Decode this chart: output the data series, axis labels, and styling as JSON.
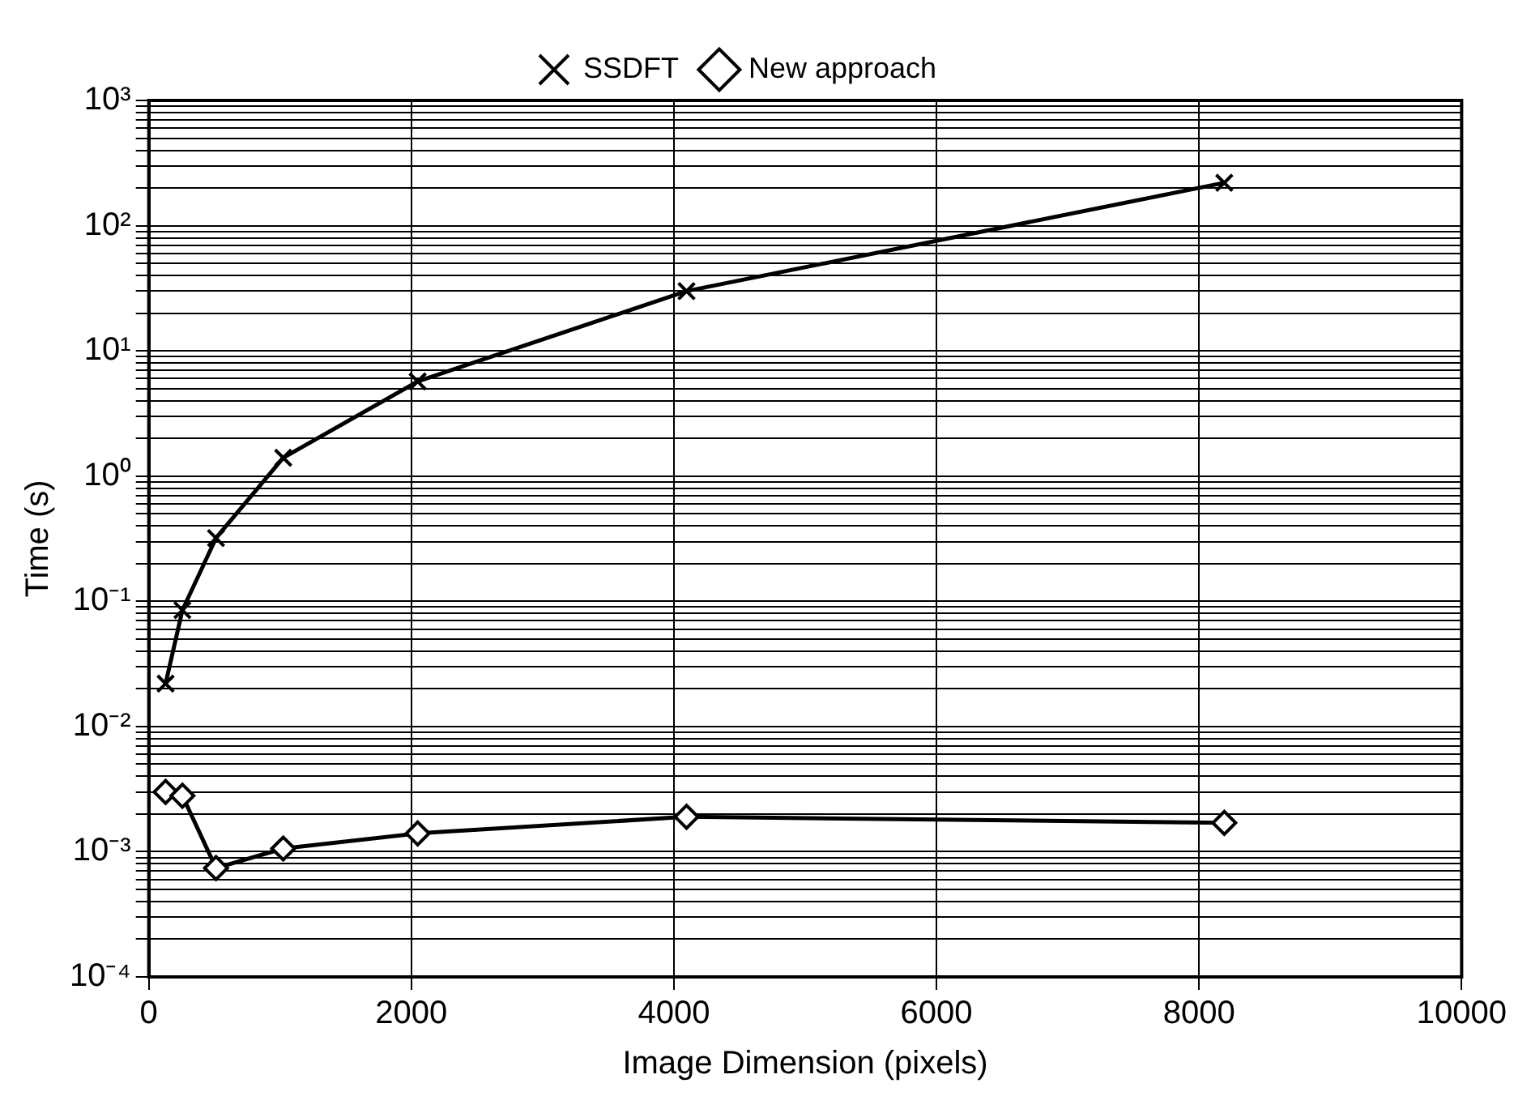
{
  "chart_data": {
    "type": "line",
    "xlabel": "Image Dimension (pixels)",
    "ylabel": "Time (s)",
    "log": "y",
    "grid": true,
    "legend": "top",
    "line_style": "solid",
    "x": [
      128,
      256,
      512,
      1024,
      2048,
      4096,
      8192
    ],
    "xlim": [
      0,
      10000
    ],
    "xticks": [
      0,
      2000,
      4000,
      6000,
      8000,
      10000
    ],
    "ylim": [
      0.0001,
      1000
    ],
    "yticks": [
      {
        "value": 0.0001,
        "label": "10⁻⁴"
      },
      {
        "value": 0.0002,
        "label": null
      },
      {
        "value": 0.0003,
        "label": null
      },
      {
        "value": 0.0004,
        "label": null
      },
      {
        "value": 0.0005,
        "label": null
      },
      {
        "value": 0.0006,
        "label": null
      },
      {
        "value": 0.0007,
        "label": null
      },
      {
        "value": 0.0008,
        "label": null
      },
      {
        "value": 0.0009,
        "label": null
      },
      {
        "value": 0.001,
        "label": "10⁻³"
      },
      {
        "value": 0.002,
        "label": null
      },
      {
        "value": 0.003,
        "label": null
      },
      {
        "value": 0.004,
        "label": null
      },
      {
        "value": 0.005,
        "label": null
      },
      {
        "value": 0.006,
        "label": null
      },
      {
        "value": 0.007,
        "label": null
      },
      {
        "value": 0.008,
        "label": null
      },
      {
        "value": 0.009,
        "label": null
      },
      {
        "value": 0.01,
        "label": "10⁻²"
      },
      {
        "value": 0.02,
        "label": null
      },
      {
        "value": 0.03,
        "label": null
      },
      {
        "value": 0.04,
        "label": null
      },
      {
        "value": 0.05,
        "label": null
      },
      {
        "value": 0.06,
        "label": null
      },
      {
        "value": 0.07,
        "label": null
      },
      {
        "value": 0.08,
        "label": null
      },
      {
        "value": 0.09,
        "label": null
      },
      {
        "value": 0.1,
        "label": "10⁻¹"
      },
      {
        "value": 0.2,
        "label": null
      },
      {
        "value": 0.3,
        "label": null
      },
      {
        "value": 0.4,
        "label": null
      },
      {
        "value": 0.5,
        "label": null
      },
      {
        "value": 0.6,
        "label": null
      },
      {
        "value": 0.7,
        "label": null
      },
      {
        "value": 0.8,
        "label": null
      },
      {
        "value": 0.9,
        "label": null
      },
      {
        "value": 1,
        "label": "10⁰"
      },
      {
        "value": 2,
        "label": null
      },
      {
        "value": 3,
        "label": null
      },
      {
        "value": 4,
        "label": null
      },
      {
        "value": 5,
        "label": null
      },
      {
        "value": 6,
        "label": null
      },
      {
        "value": 7,
        "label": null
      },
      {
        "value": 8,
        "label": null
      },
      {
        "value": 9,
        "label": null
      },
      {
        "value": 10,
        "label": "10¹"
      },
      {
        "value": 20,
        "label": null
      },
      {
        "value": 30,
        "label": null
      },
      {
        "value": 40,
        "label": null
      },
      {
        "value": 50,
        "label": null
      },
      {
        "value": 60,
        "label": null
      },
      {
        "value": 70,
        "label": null
      },
      {
        "value": 80,
        "label": null
      },
      {
        "value": 90,
        "label": null
      },
      {
        "value": 100,
        "label": "10²"
      },
      {
        "value": 200,
        "label": null
      },
      {
        "value": 300,
        "label": null
      },
      {
        "value": 400,
        "label": null
      },
      {
        "value": 500,
        "label": null
      },
      {
        "value": 600,
        "label": null
      },
      {
        "value": 700,
        "label": null
      },
      {
        "value": 800,
        "label": null
      },
      {
        "value": 900,
        "label": null
      },
      {
        "value": 1000,
        "label": "10³"
      }
    ],
    "series": [
      {
        "name": "SSDFT",
        "color": "#000000",
        "marker": "cross",
        "values": [
          0.022,
          0.085,
          0.32,
          1.4,
          5.7,
          30,
          220
        ]
      },
      {
        "name": "New approach",
        "color": "#000000",
        "marker": "diamond",
        "values": [
          0.003,
          0.0028,
          0.00074,
          0.00106,
          0.0014,
          0.0019,
          0.0017
        ]
      }
    ]
  }
}
